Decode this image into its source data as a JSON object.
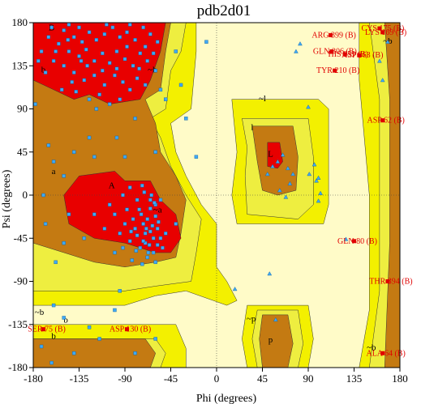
{
  "chart_data": {
    "type": "scatter",
    "title": "pdb2d01",
    "xlabel": "Phi (degrees)",
    "ylabel": "Psi (degrees)",
    "xlim": [
      -180,
      180
    ],
    "ylim": [
      -180,
      180
    ],
    "xticks": [
      -180,
      -135,
      -90,
      -45,
      0,
      45,
      90,
      135,
      180
    ],
    "yticks": [
      180,
      135,
      90,
      45,
      0,
      -45,
      -90,
      -135,
      -180
    ],
    "xtick_labels": [
      "-180",
      "-135",
      "-90",
      "-45",
      "0",
      "45",
      "90",
      "135",
      "180"
    ],
    "ytick_labels": [
      "180",
      "135",
      "90",
      "45",
      "0",
      "-45",
      "-90",
      "-135",
      "-180"
    ],
    "grid": false,
    "region_labels": [
      {
        "text": "B",
        "phi": -162,
        "psi": 172
      },
      {
        "text": "b",
        "phi": -170,
        "psi": 128
      },
      {
        "text": "~b",
        "phi": -63,
        "psi": 128
      },
      {
        "text": "~b",
        "phi": 168,
        "psi": 158
      },
      {
        "text": "~l",
        "phi": 45,
        "psi": 98
      },
      {
        "text": "l",
        "phi": 35,
        "psi": 68
      },
      {
        "text": "L",
        "phi": 53,
        "psi": 40
      },
      {
        "text": "a",
        "phi": -160,
        "psi": 22
      },
      {
        "text": "A",
        "phi": -103,
        "psi": 7
      },
      {
        "text": "~a",
        "phi": -58,
        "psi": -18
      },
      {
        "text": "~b",
        "phi": -174,
        "psi": -125
      },
      {
        "text": "b",
        "phi": -148,
        "psi": -133
      },
      {
        "text": "b",
        "phi": -160,
        "psi": -150
      },
      {
        "text": "~p",
        "phi": 34,
        "psi": -132
      },
      {
        "text": "p",
        "phi": 53,
        "psi": -154
      },
      {
        "text": "~b",
        "phi": 152,
        "psi": -162
      }
    ],
    "outliers": [
      {
        "label": "ARG 399 (B)",
        "phi": 112,
        "psi": 167
      },
      {
        "label": "CYS 175 (B)",
        "phi": 160,
        "psi": 174
      },
      {
        "label": "LYS 169 (B)",
        "phi": 163,
        "psi": 170
      },
      {
        "label": "GLN 306 (B)",
        "phi": 113,
        "psi": 150
      },
      {
        "label": "HIS 359 (B)",
        "phi": 126,
        "psi": 147
      },
      {
        "label": "ASP 363 (B)",
        "phi": 140,
        "psi": 146
      },
      {
        "label": "TYR 210 (B)",
        "phi": 116,
        "psi": 130
      },
      {
        "label": "ASP 62 (B)",
        "phi": 163,
        "psi": 78
      },
      {
        "label": "GLN 80 (B)",
        "phi": 135,
        "psi": -48
      },
      {
        "label": "THR 394 (B)",
        "phi": 168,
        "psi": -90
      },
      {
        "label": "SER 75 (B)",
        "phi": -170,
        "psi": -140
      },
      {
        "label": "ASP 130 (B)",
        "phi": -88,
        "psi": -140
      },
      {
        "label": "ALA 64 (B)",
        "phi": 163,
        "psi": -165
      }
    ],
    "glycine_points": [
      [
        78,
        150
      ],
      [
        82,
        158
      ],
      [
        90,
        92
      ],
      [
        96,
        32
      ],
      [
        98,
        15
      ],
      [
        100,
        18
      ],
      [
        102,
        2
      ],
      [
        91,
        22
      ],
      [
        75,
        22
      ],
      [
        70,
        28
      ],
      [
        65,
        42
      ],
      [
        60,
        35
      ],
      [
        55,
        30
      ],
      [
        50,
        22
      ],
      [
        72,
        12
      ],
      [
        62,
        5
      ],
      [
        68,
        -2
      ],
      [
        100,
        -6
      ],
      [
        127,
        -46
      ],
      [
        52,
        -82
      ],
      [
        18,
        -98
      ],
      [
        58,
        -130
      ],
      [
        160,
        140
      ],
      [
        168,
        160
      ],
      [
        163,
        120
      ]
    ],
    "general_points": [
      [
        -162,
        175
      ],
      [
        -150,
        172
      ],
      [
        -140,
        165
      ],
      [
        -132,
        160
      ],
      [
        -125,
        170
      ],
      [
        -118,
        162
      ],
      [
        -110,
        168
      ],
      [
        -102,
        175
      ],
      [
        -95,
        165
      ],
      [
        -88,
        170
      ],
      [
        -80,
        162
      ],
      [
        -72,
        175
      ],
      [
        -65,
        168
      ],
      [
        -58,
        160
      ],
      [
        -155,
        158
      ],
      [
        -145,
        150
      ],
      [
        -135,
        145
      ],
      [
        -128,
        152
      ],
      [
        -120,
        140
      ],
      [
        -112,
        148
      ],
      [
        -105,
        138
      ],
      [
        -98,
        150
      ],
      [
        -90,
        142
      ],
      [
        -82,
        135
      ],
      [
        -75,
        148
      ],
      [
        -68,
        140
      ],
      [
        -60,
        130
      ],
      [
        -150,
        135
      ],
      [
        -140,
        128
      ],
      [
        -130,
        120
      ],
      [
        -120,
        125
      ],
      [
        -110,
        115
      ],
      [
        -100,
        125
      ],
      [
        -92,
        118
      ],
      [
        -85,
        110
      ],
      [
        -78,
        122
      ],
      [
        -70,
        115
      ],
      [
        -138,
        108
      ],
      [
        -125,
        100
      ],
      [
        -115,
        105
      ],
      [
        -105,
        95
      ],
      [
        -160,
        140
      ],
      [
        -165,
        165
      ],
      [
        -172,
        150
      ],
      [
        -145,
        178
      ],
      [
        -135,
        175
      ],
      [
        -108,
        178
      ],
      [
        -85,
        178
      ],
      [
        -70,
        155
      ],
      [
        -62,
        148
      ],
      [
        -95,
        100
      ],
      [
        -118,
        90
      ],
      [
        -142,
        118
      ],
      [
        -152,
        110
      ],
      [
        -127,
        135
      ],
      [
        -98,
        132
      ],
      [
        -88,
        155
      ],
      [
        -76,
        132
      ],
      [
        -112,
        130
      ],
      [
        -133,
        140
      ],
      [
        -146,
        162
      ],
      [
        -158,
        150
      ],
      [
        -168,
        128
      ],
      [
        -175,
        140
      ],
      [
        -178,
        95
      ],
      [
        -165,
        52
      ],
      [
        -160,
        35
      ],
      [
        -125,
        60
      ],
      [
        -140,
        45
      ],
      [
        -150,
        20
      ],
      [
        -170,
        0
      ],
      [
        -168,
        -30
      ],
      [
        -150,
        -50
      ],
      [
        -158,
        -70
      ],
      [
        -145,
        -20
      ],
      [
        -120,
        40
      ],
      [
        -90,
        40
      ],
      [
        -60,
        45
      ],
      [
        -80,
        80
      ],
      [
        -98,
        60
      ],
      [
        -55,
        110
      ],
      [
        -30,
        80
      ],
      [
        -20,
        40
      ],
      [
        -10,
        160
      ],
      [
        -40,
        150
      ],
      [
        -50,
        100
      ],
      [
        -35,
        115
      ],
      [
        -60,
        -10
      ],
      [
        -40,
        -30
      ],
      [
        -100,
        -60
      ],
      [
        -120,
        -20
      ],
      [
        -130,
        -45
      ],
      [
        -95,
        -100
      ],
      [
        -160,
        -115
      ],
      [
        -150,
        -128
      ],
      [
        -140,
        -165
      ],
      [
        -115,
        -150
      ],
      [
        -80,
        -165
      ],
      [
        -60,
        -150
      ],
      [
        -100,
        -120
      ],
      [
        -125,
        -138
      ],
      [
        -172,
        -158
      ],
      [
        -162,
        -175
      ],
      [
        -70,
        -50
      ],
      [
        -78,
        -42
      ],
      [
        -65,
        -38
      ],
      [
        -72,
        -30
      ],
      [
        -62,
        -45
      ],
      [
        -68,
        -25
      ],
      [
        -58,
        -35
      ],
      [
        -75,
        -55
      ],
      [
        -80,
        -35
      ],
      [
        -66,
        -52
      ],
      [
        -60,
        -22
      ],
      [
        -55,
        -45
      ],
      [
        -85,
        -48
      ],
      [
        -70,
        -40
      ],
      [
        -63,
        -32
      ],
      [
        -57,
        -28
      ],
      [
        -74,
        -20
      ],
      [
        -82,
        -25
      ],
      [
        -67,
        -60
      ],
      [
        -76,
        -15
      ],
      [
        -61,
        -8
      ],
      [
        -90,
        -30
      ],
      [
        -50,
        -40
      ],
      [
        -53,
        -55
      ],
      [
        -88,
        -15
      ],
      [
        -72,
        -48
      ],
      [
        -65,
        -14
      ],
      [
        -79,
        -58
      ],
      [
        -58,
        -52
      ],
      [
        -69,
        -35
      ],
      [
        -84,
        -38
      ],
      [
        -62,
        -60
      ],
      [
        -95,
        -40
      ],
      [
        -100,
        -20
      ],
      [
        -105,
        -10
      ],
      [
        -110,
        -35
      ],
      [
        -92,
        0
      ],
      [
        -73,
        10
      ],
      [
        -64,
        0
      ],
      [
        -55,
        -5
      ],
      [
        -85,
        8
      ],
      [
        -78,
        -5
      ],
      [
        -68,
        -65
      ],
      [
        -73,
        -72
      ],
      [
        -92,
        -55
      ],
      [
        -60,
        -70
      ],
      [
        -83,
        -68
      ],
      [
        -65,
        -5
      ],
      [
        -71,
        3
      ]
    ]
  }
}
